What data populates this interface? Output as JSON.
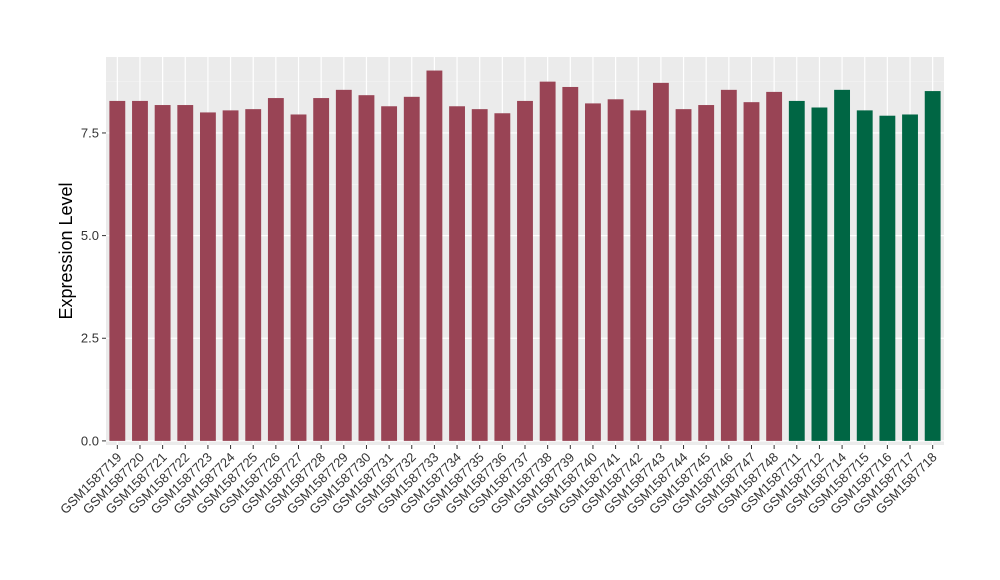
{
  "chart_data": {
    "type": "bar",
    "title": "",
    "xlabel": "",
    "ylabel": "Expression Level",
    "ylim": [
      -0.1,
      9.35
    ],
    "yticks": [
      0.0,
      2.5,
      5.0,
      7.5
    ],
    "ytick_labels": [
      "0.0",
      "2.5",
      "5.0",
      "7.5"
    ],
    "grid": true,
    "legend": "none",
    "panel_background": "#ebebeb",
    "categories": [
      "GSM1587719",
      "GSM1587720",
      "GSM1587721",
      "GSM1587722",
      "GSM1587723",
      "GSM1587724",
      "GSM1587725",
      "GSM1587726",
      "GSM1587727",
      "GSM1587728",
      "GSM1587729",
      "GSM1587730",
      "GSM1587731",
      "GSM1587732",
      "GSM1587733",
      "GSM1587734",
      "GSM1587735",
      "GSM1587736",
      "GSM1587737",
      "GSM1587738",
      "GSM1587739",
      "GSM1587740",
      "GSM1587741",
      "GSM1587742",
      "GSM1587743",
      "GSM1587744",
      "GSM1587745",
      "GSM1587746",
      "GSM1587747",
      "GSM1587748",
      "GSM1587711",
      "GSM1587712",
      "GSM1587714",
      "GSM1587715",
      "GSM1587716",
      "GSM1587717",
      "GSM1587718"
    ],
    "values": [
      8.28,
      8.28,
      8.18,
      8.18,
      8.0,
      8.05,
      8.08,
      8.35,
      7.95,
      8.35,
      8.55,
      8.42,
      8.15,
      8.38,
      9.02,
      8.15,
      8.08,
      7.98,
      8.28,
      8.75,
      8.62,
      8.22,
      8.32,
      8.05,
      8.72,
      8.08,
      8.18,
      8.55,
      8.25,
      8.5,
      8.28,
      8.12,
      8.55,
      8.05,
      7.92,
      7.95,
      8.52
    ],
    "bar_colors": [
      "#994455",
      "#994455",
      "#994455",
      "#994455",
      "#994455",
      "#994455",
      "#994455",
      "#994455",
      "#994455",
      "#994455",
      "#994455",
      "#994455",
      "#994455",
      "#994455",
      "#994455",
      "#994455",
      "#994455",
      "#994455",
      "#994455",
      "#994455",
      "#994455",
      "#994455",
      "#994455",
      "#994455",
      "#994455",
      "#994455",
      "#994455",
      "#994455",
      "#994455",
      "#994455",
      "#006644",
      "#006644",
      "#006644",
      "#006644",
      "#006644",
      "#006644",
      "#006644"
    ]
  }
}
